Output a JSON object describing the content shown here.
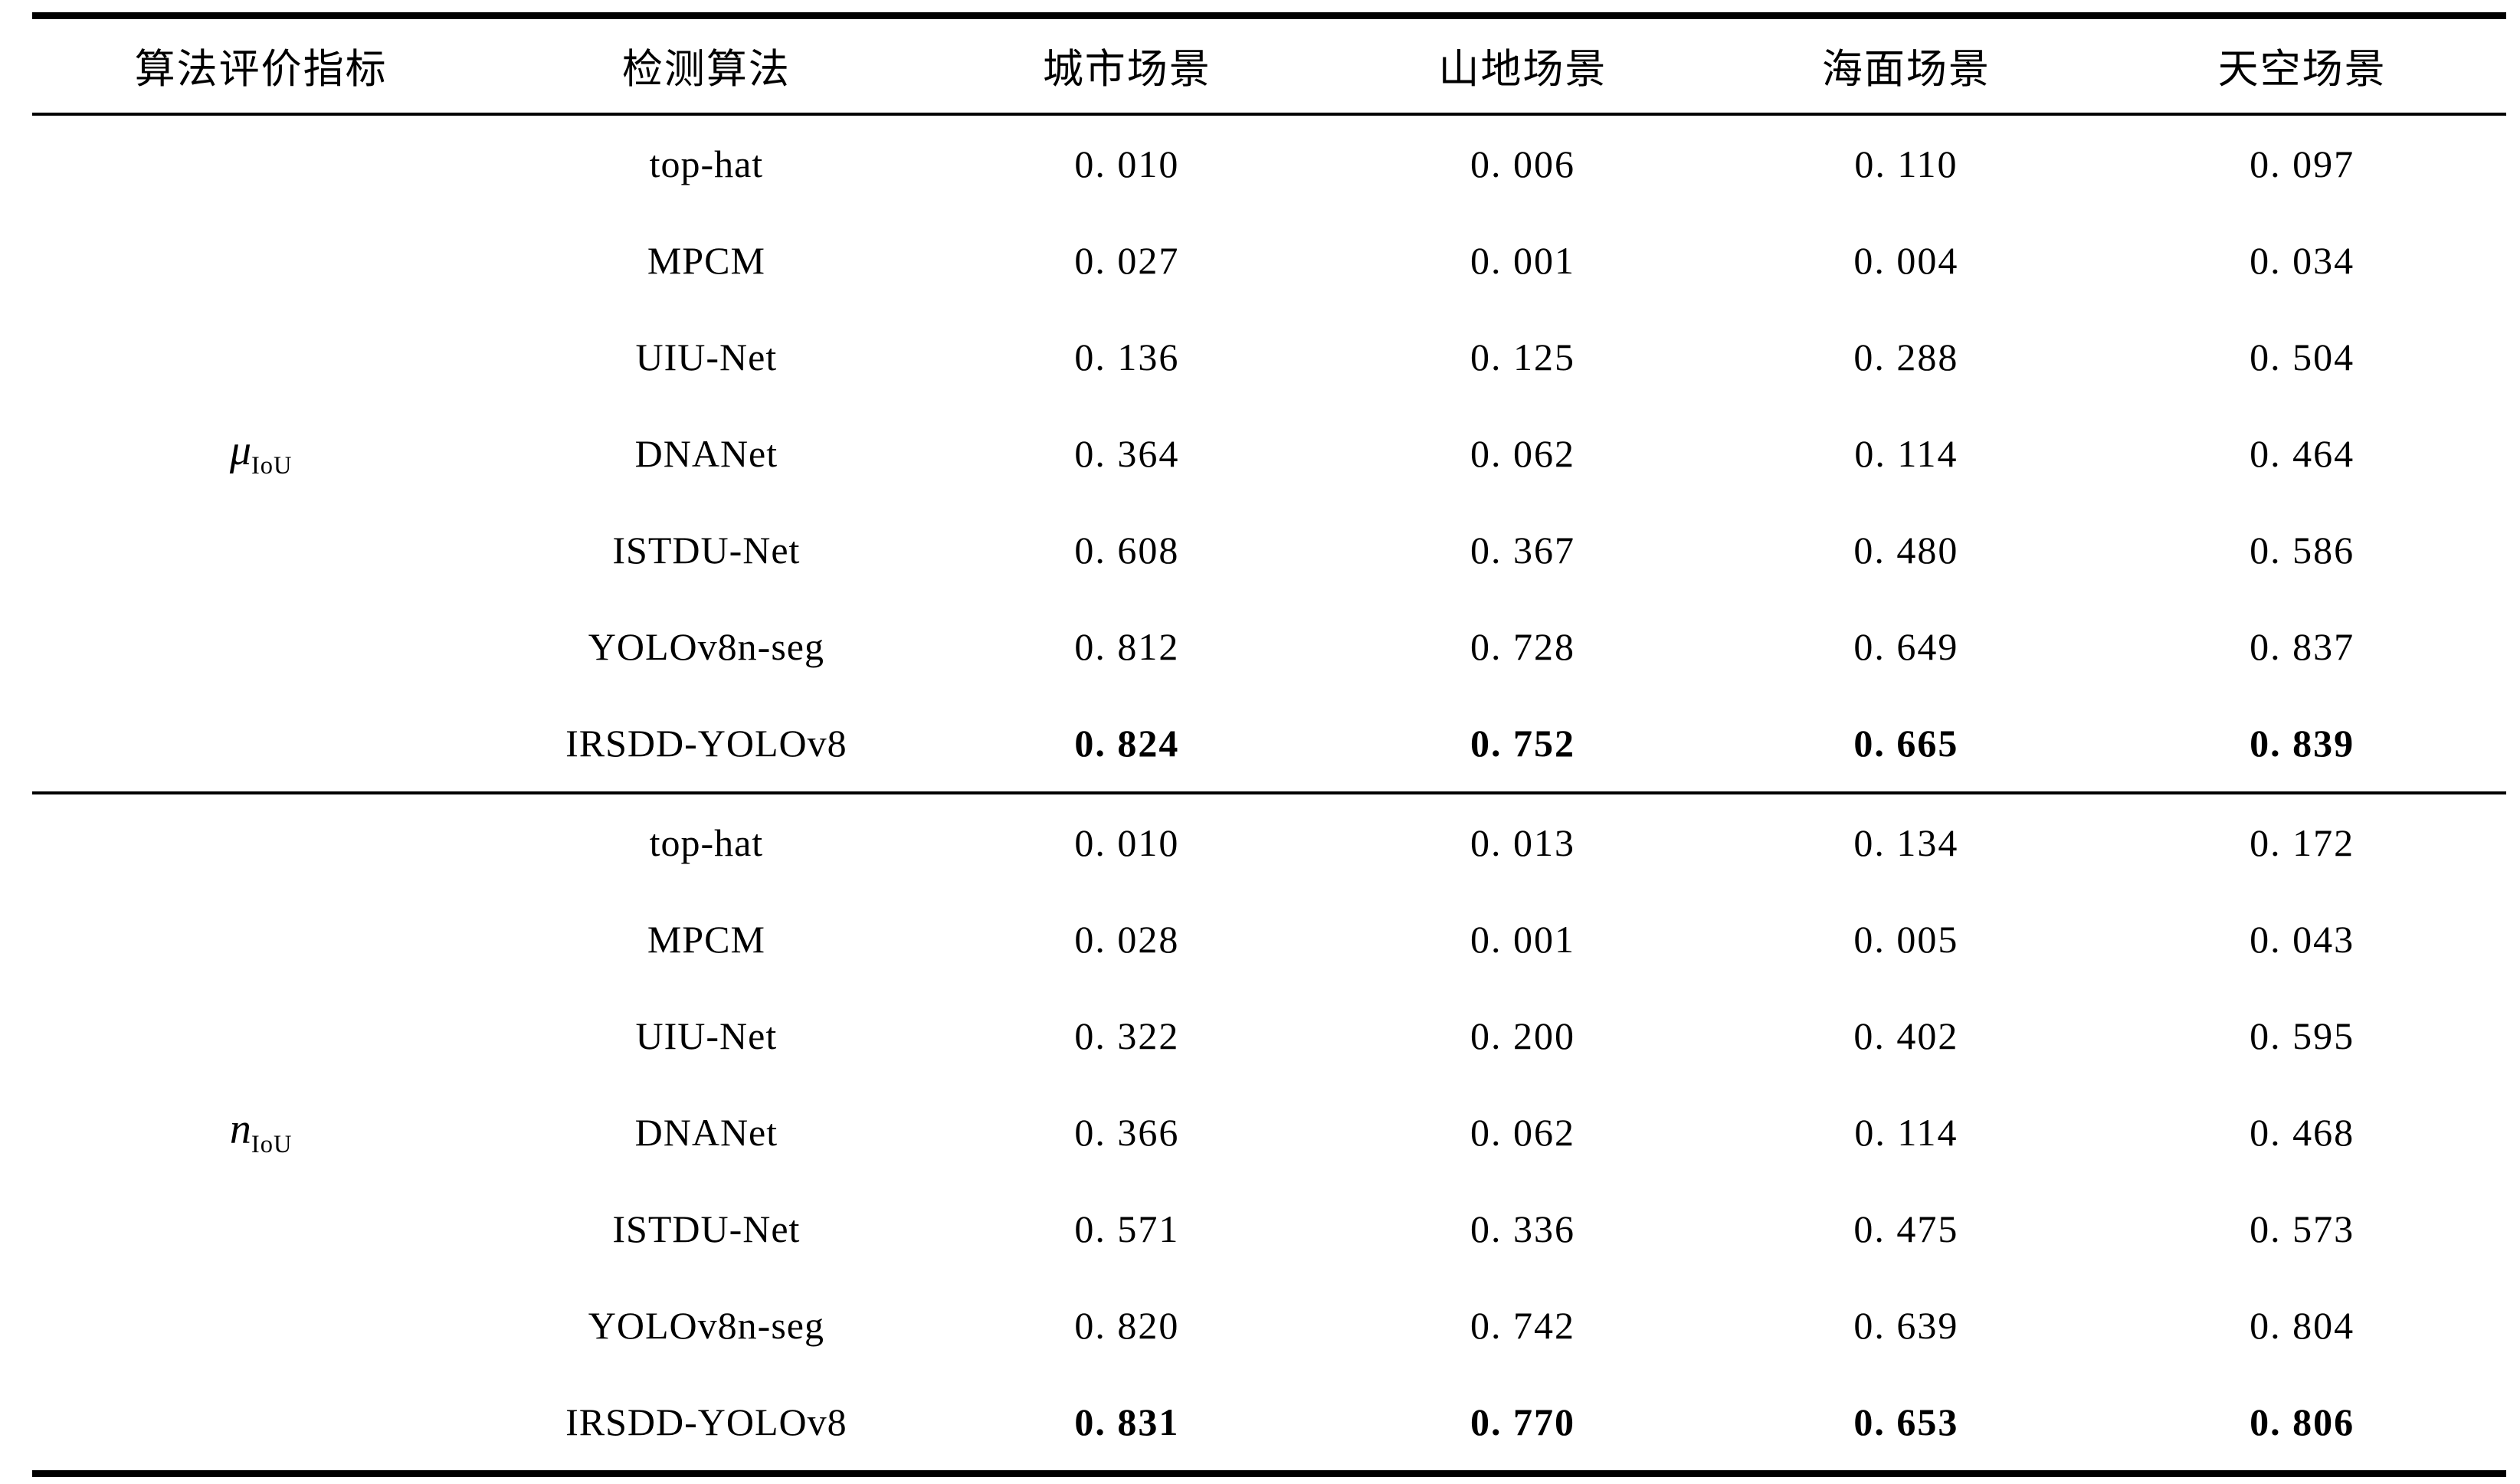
{
  "colors": {
    "background": "#ffffff",
    "text": "#000000",
    "rule": "#000000"
  },
  "table": {
    "headers": [
      "算法评价指标",
      "检测算法",
      "城市场景",
      "山地场景",
      "海面场景",
      "天空场景"
    ],
    "groups": [
      {
        "metric": {
          "symbol": "μ",
          "subscript": "IoU"
        },
        "rows": [
          {
            "algorithm": "top-hat",
            "values": [
              "0. 010",
              "0. 006",
              "0. 110",
              "0. 097"
            ],
            "bold": false
          },
          {
            "algorithm": "MPCM",
            "values": [
              "0. 027",
              "0. 001",
              "0. 004",
              "0. 034"
            ],
            "bold": false
          },
          {
            "algorithm": "UIU-Net",
            "values": [
              "0. 136",
              "0. 125",
              "0. 288",
              "0. 504"
            ],
            "bold": false
          },
          {
            "algorithm": "DNANet",
            "values": [
              "0. 364",
              "0. 062",
              "0. 114",
              "0. 464"
            ],
            "bold": false
          },
          {
            "algorithm": "ISTDU-Net",
            "values": [
              "0. 608",
              "0. 367",
              "0. 480",
              "0. 586"
            ],
            "bold": false
          },
          {
            "algorithm": "YOLOv8n-seg",
            "values": [
              "0. 812",
              "0. 728",
              "0. 649",
              "0. 837"
            ],
            "bold": false
          },
          {
            "algorithm": "IRSDD-YOLOv8",
            "values": [
              "0. 824",
              "0. 752",
              "0. 665",
              "0. 839"
            ],
            "bold": true
          }
        ]
      },
      {
        "metric": {
          "symbol": "n",
          "subscript": "IoU"
        },
        "rows": [
          {
            "algorithm": "top-hat",
            "values": [
              "0. 010",
              "0. 013",
              "0. 134",
              "0. 172"
            ],
            "bold": false
          },
          {
            "algorithm": "MPCM",
            "values": [
              "0. 028",
              "0. 001",
              "0. 005",
              "0. 043"
            ],
            "bold": false
          },
          {
            "algorithm": "UIU-Net",
            "values": [
              "0. 322",
              "0. 200",
              "0. 402",
              "0. 595"
            ],
            "bold": false
          },
          {
            "algorithm": "DNANet",
            "values": [
              "0. 366",
              "0. 062",
              "0. 114",
              "0. 468"
            ],
            "bold": false
          },
          {
            "algorithm": "ISTDU-Net",
            "values": [
              "0. 571",
              "0. 336",
              "0. 475",
              "0. 573"
            ],
            "bold": false
          },
          {
            "algorithm": "YOLOv8n-seg",
            "values": [
              "0. 820",
              "0. 742",
              "0. 639",
              "0. 804"
            ],
            "bold": false
          },
          {
            "algorithm": "IRSDD-YOLOv8",
            "values": [
              "0. 831",
              "0. 770",
              "0. 653",
              "0. 806"
            ],
            "bold": true
          }
        ]
      }
    ]
  }
}
